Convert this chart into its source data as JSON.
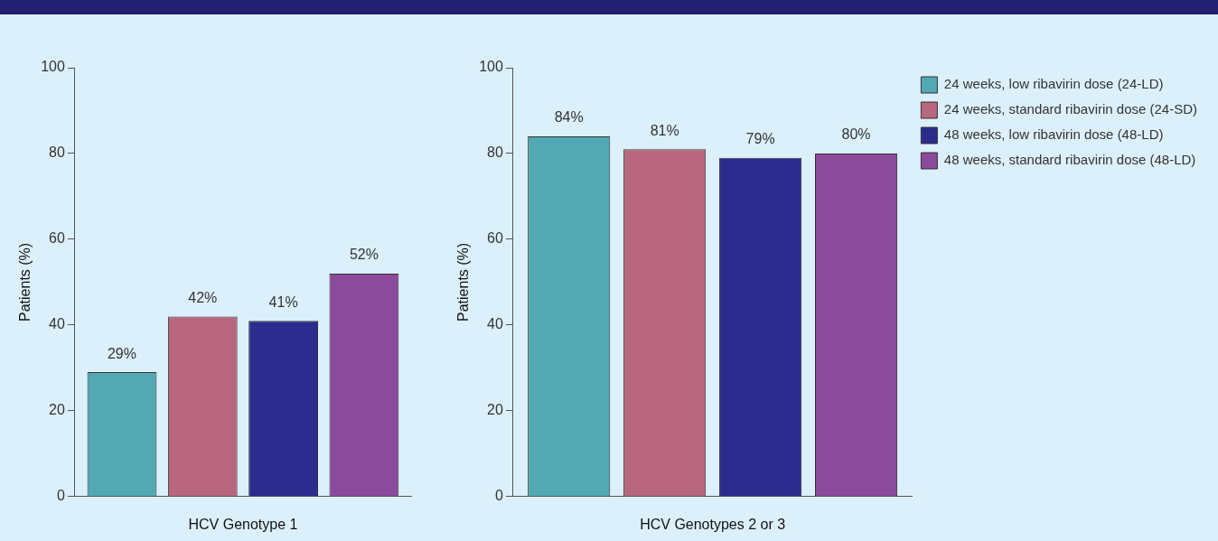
{
  "chart_data": [
    {
      "type": "bar",
      "xlabel": "HCV Genotype 1",
      "ylabel": "Patients (%)",
      "categories": [
        null
      ],
      "series": [
        {
          "color": "#52a8b3",
          "values": [
            29
          ],
          "value_labels": [
            "29%"
          ]
        },
        {
          "color": "#b8677f",
          "values": [
            42
          ],
          "value_labels": [
            "42%"
          ]
        },
        {
          "color": "#2c2c8e",
          "values": [
            41
          ],
          "value_labels": [
            "41%"
          ]
        },
        {
          "color": "#8c4a9c",
          "values": [
            52
          ],
          "value_labels": [
            "52%"
          ]
        }
      ],
      "ylim": [
        0,
        100
      ],
      "yticks": [
        0,
        20,
        40,
        60,
        80,
        100
      ],
      "grid": false,
      "legend": false,
      "tick_labels": "y"
    },
    {
      "type": "bar",
      "xlabel": "HCV Genotypes 2 or 3",
      "ylabel": "Patients (%)",
      "categories": [
        null
      ],
      "series": [
        {
          "name": "24 weeks, low ribavirin dose (24-LD)",
          "color": "#52a8b3",
          "values": [
            84
          ],
          "value_labels": [
            "84%"
          ]
        },
        {
          "name": "24 weeks, standard ribavirin dose (24-SD)",
          "color": "#b8677f",
          "values": [
            81
          ],
          "value_labels": [
            "81%"
          ]
        },
        {
          "name": "48 weeks, low ribavirin dose (48-LD)",
          "color": "#2c2c8e",
          "values": [
            79
          ],
          "value_labels": [
            "79%"
          ]
        },
        {
          "name": "48 weeks, standard ribavirin dose (48-LD)",
          "color": "#8c4a9c",
          "values": [
            80
          ],
          "value_labels": [
            "80%"
          ]
        }
      ],
      "ylim": [
        0,
        100
      ],
      "yticks": [
        0,
        20,
        40,
        60,
        80,
        100
      ],
      "grid": false,
      "legend": "right",
      "tick_labels": "y"
    }
  ]
}
